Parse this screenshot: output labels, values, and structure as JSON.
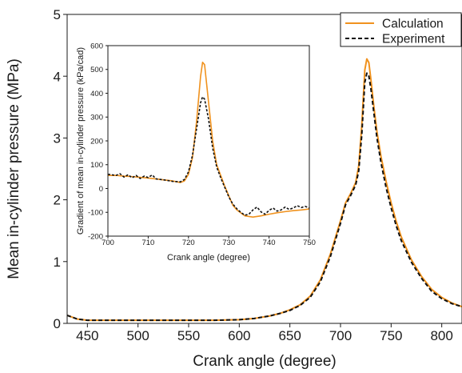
{
  "chart_data": [
    {
      "type": "line",
      "title": "",
      "xlabel": "Crank angle (degree)",
      "ylabel": "Mean in-cylinder pressure (MPa)",
      "xlim": [
        430,
        820
      ],
      "ylim": [
        0,
        5
      ],
      "xticks": [
        450,
        500,
        550,
        600,
        650,
        700,
        750,
        800
      ],
      "yticks": [
        0,
        1,
        2,
        3,
        4,
        5
      ],
      "grid": false,
      "legend": "top-right",
      "series": [
        {
          "name": "Calculation",
          "color": "#f0921e",
          "style": "solid",
          "x": [
            430,
            440,
            450,
            475,
            500,
            525,
            550,
            575,
            600,
            615,
            630,
            640,
            650,
            660,
            670,
            680,
            690,
            700,
            705,
            710,
            715,
            718,
            721,
            724,
            726,
            728,
            730,
            733,
            736,
            740,
            745,
            750,
            755,
            760,
            770,
            780,
            790,
            800,
            810,
            820
          ],
          "y": [
            0.13,
            0.07,
            0.05,
            0.05,
            0.05,
            0.05,
            0.05,
            0.05,
            0.06,
            0.08,
            0.12,
            0.16,
            0.22,
            0.3,
            0.44,
            0.7,
            1.12,
            1.66,
            1.95,
            2.1,
            2.28,
            2.55,
            3.2,
            4.1,
            4.28,
            4.22,
            3.95,
            3.5,
            3.1,
            2.7,
            2.3,
            1.95,
            1.65,
            1.4,
            1.03,
            0.76,
            0.55,
            0.42,
            0.33,
            0.27
          ]
        },
        {
          "name": "Experiment",
          "color": "#111111",
          "style": "dashed",
          "x": [
            430,
            440,
            450,
            475,
            500,
            525,
            550,
            575,
            600,
            615,
            630,
            640,
            650,
            660,
            670,
            680,
            690,
            700,
            705,
            710,
            715,
            718,
            721,
            724,
            726,
            728,
            730,
            733,
            736,
            740,
            745,
            750,
            755,
            760,
            770,
            780,
            790,
            800,
            810,
            820
          ],
          "y": [
            0.13,
            0.07,
            0.05,
            0.05,
            0.05,
            0.05,
            0.05,
            0.05,
            0.06,
            0.08,
            0.12,
            0.16,
            0.21,
            0.29,
            0.42,
            0.67,
            1.08,
            1.62,
            1.92,
            2.07,
            2.24,
            2.47,
            3.05,
            3.9,
            4.05,
            4.0,
            3.8,
            3.4,
            3.0,
            2.6,
            2.2,
            1.87,
            1.58,
            1.34,
            0.99,
            0.73,
            0.52,
            0.4,
            0.32,
            0.27
          ]
        }
      ]
    },
    {
      "type": "line",
      "title": "",
      "xlabel": "Crank angle (degree)",
      "ylabel": "Gradient of mean in-cylinder pressure (kPa/cad)",
      "xlim": [
        700,
        750
      ],
      "ylim": [
        -200,
        600
      ],
      "xticks": [
        700,
        710,
        720,
        730,
        740,
        750
      ],
      "yticks": [
        -200,
        -100,
        0,
        100,
        200,
        300,
        400,
        500,
        600
      ],
      "grid": false,
      "series": [
        {
          "name": "Calculation",
          "color": "#f0921e",
          "style": "solid",
          "x": [
            700,
            702,
            704,
            706,
            708,
            710,
            712,
            714,
            716,
            718,
            719,
            720,
            721,
            722,
            723,
            723.5,
            724,
            725,
            726,
            727,
            728,
            729,
            730,
            731,
            732,
            734,
            736,
            738,
            740,
            742,
            744,
            746,
            748,
            750
          ],
          "y": [
            55,
            55,
            52,
            50,
            47,
            44,
            40,
            36,
            32,
            25,
            32,
            60,
            130,
            280,
            470,
            530,
            520,
            360,
            200,
            100,
            55,
            10,
            -30,
            -70,
            -90,
            -115,
            -120,
            -115,
            -108,
            -102,
            -97,
            -93,
            -90,
            -86
          ]
        },
        {
          "name": "Experiment",
          "color": "#111111",
          "style": "dashed",
          "x": [
            700,
            702,
            703,
            704,
            705,
            706,
            707,
            708,
            709,
            710,
            711,
            712,
            714,
            716,
            718,
            719,
            720,
            721,
            722,
            723,
            723.5,
            724,
            725,
            726,
            727,
            728,
            729,
            730,
            731,
            732,
            733,
            734,
            735,
            736,
            737,
            738,
            739,
            740,
            741,
            742,
            743,
            744,
            745,
            746,
            747,
            748,
            749,
            750
          ],
          "y": [
            60,
            55,
            62,
            48,
            58,
            45,
            55,
            42,
            52,
            46,
            57,
            40,
            36,
            30,
            28,
            38,
            70,
            140,
            250,
            360,
            385,
            375,
            290,
            170,
            90,
            45,
            5,
            -35,
            -65,
            -85,
            -100,
            -112,
            -108,
            -90,
            -78,
            -98,
            -108,
            -92,
            -82,
            -95,
            -90,
            -78,
            -88,
            -82,
            -72,
            -80,
            -75,
            -82
          ]
        }
      ]
    }
  ]
}
